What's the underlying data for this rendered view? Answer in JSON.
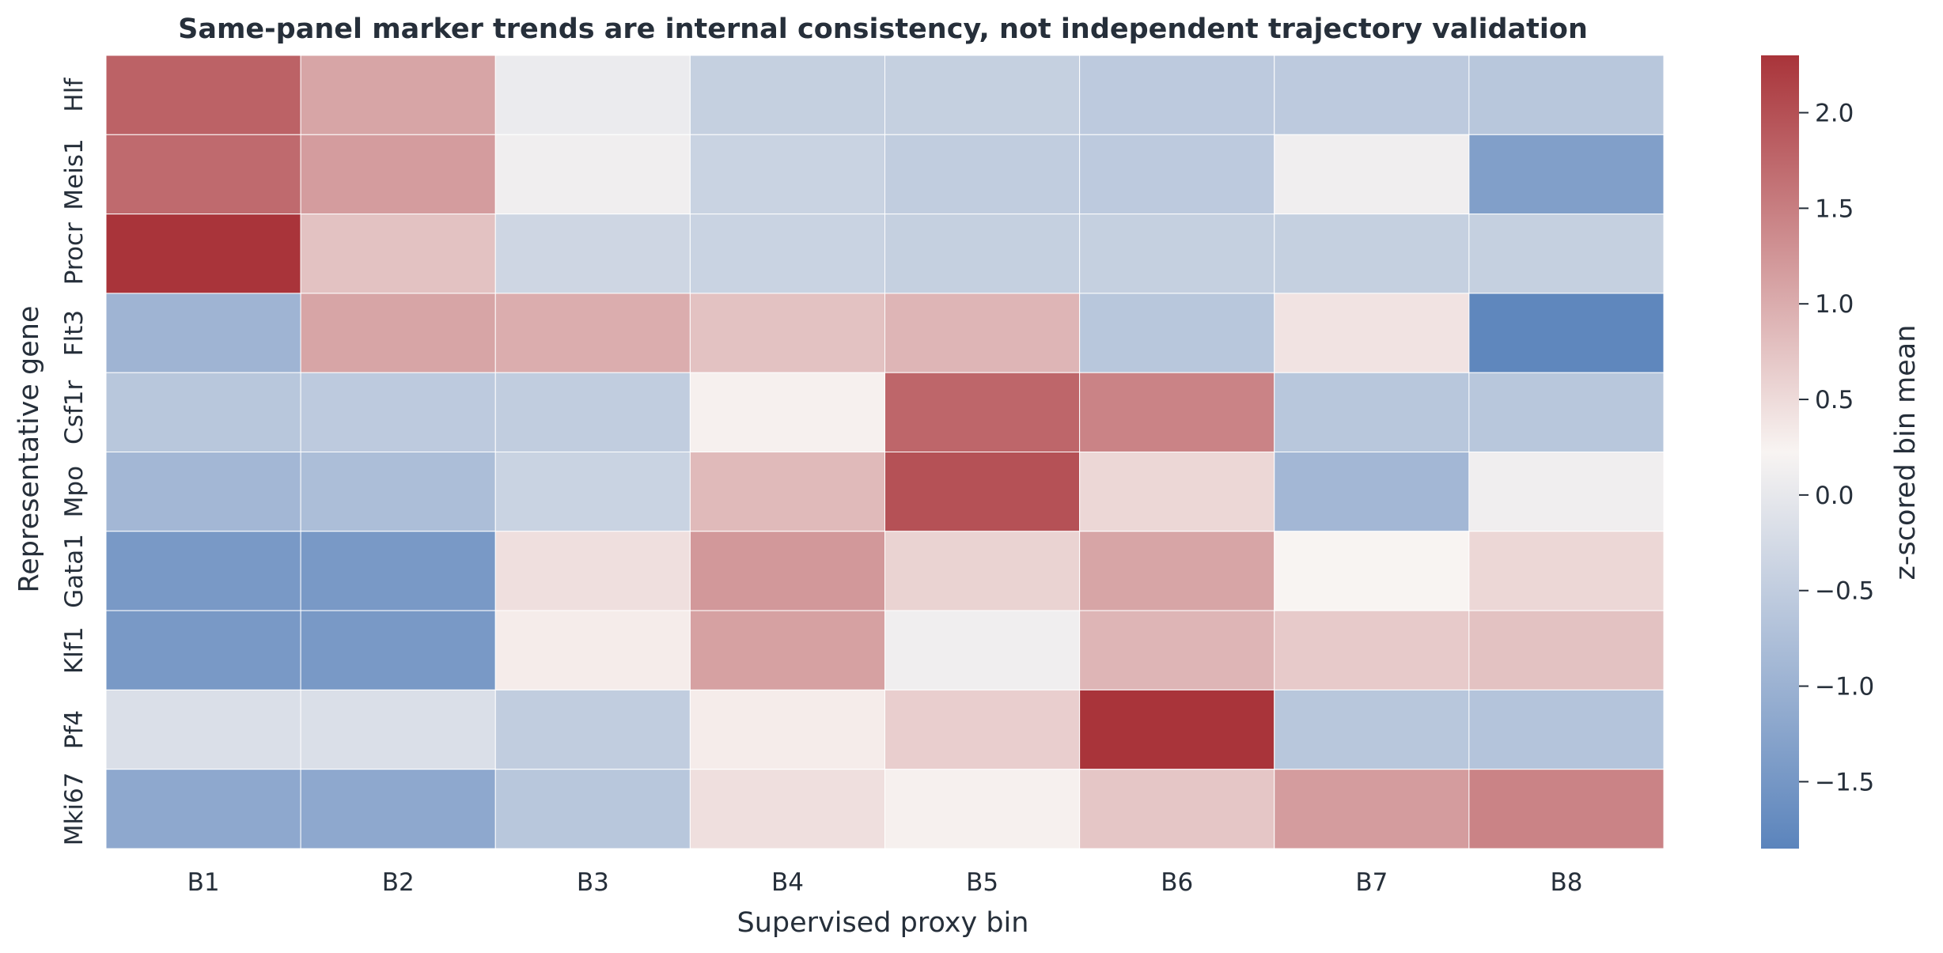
{
  "chart_data": {
    "type": "heatmap",
    "title": "Same-panel marker trends are internal consistency, not independent trajectory validation",
    "xlabel": "Supervised proxy bin",
    "ylabel": "Representative gene",
    "x_categories": [
      "B1",
      "B2",
      "B3",
      "B4",
      "B5",
      "B6",
      "B7",
      "B8"
    ],
    "y_categories": [
      "Hlf",
      "Meis1",
      "Procr",
      "Flt3",
      "Csf1r",
      "Mpo",
      "Gata1",
      "Klf1",
      "Pf4",
      "Mki67"
    ],
    "values": [
      [
        1.75,
        0.95,
        -0.15,
        -0.6,
        -0.6,
        -0.7,
        -0.7,
        -0.75
      ],
      [
        1.65,
        1.05,
        -0.1,
        -0.55,
        -0.65,
        -0.7,
        -0.1,
        -1.4
      ],
      [
        2.3,
        0.6,
        -0.5,
        -0.55,
        -0.6,
        -0.6,
        -0.6,
        -0.6
      ],
      [
        -1.05,
        0.95,
        0.85,
        0.6,
        0.75,
        -0.75,
        0.2,
        -1.8
      ],
      [
        -0.75,
        -0.7,
        -0.65,
        0.05,
        1.7,
        1.35,
        -0.75,
        -0.75
      ],
      [
        -1.0,
        -0.9,
        -0.55,
        0.7,
        1.95,
        0.35,
        -1.0,
        -0.1
      ],
      [
        -1.5,
        -1.5,
        0.25,
        1.1,
        0.4,
        0.95,
        0.0,
        0.35
      ],
      [
        -1.5,
        -1.5,
        0.1,
        1.0,
        -0.1,
        0.75,
        0.5,
        0.6
      ],
      [
        -0.35,
        -0.35,
        -0.65,
        0.1,
        0.45,
        2.3,
        -0.75,
        -0.8
      ],
      [
        -1.25,
        -1.25,
        -0.75,
        0.25,
        0.05,
        0.55,
        1.05,
        1.35
      ]
    ],
    "colorbar": {
      "label": "z-scored bin mean",
      "vmin": -1.85,
      "vmax": 2.3,
      "ticks": [
        2.0,
        1.5,
        1.0,
        0.5,
        0.0,
        -0.5,
        -1.0,
        -1.5
      ],
      "tick_labels": [
        "2.0",
        "1.5",
        "1.0",
        "0.5",
        "0.0",
        "−0.5",
        "−1.0",
        "−1.5"
      ],
      "colormap": [
        "#5b84bc",
        "#f8f4f2",
        "#a9343a"
      ]
    }
  }
}
